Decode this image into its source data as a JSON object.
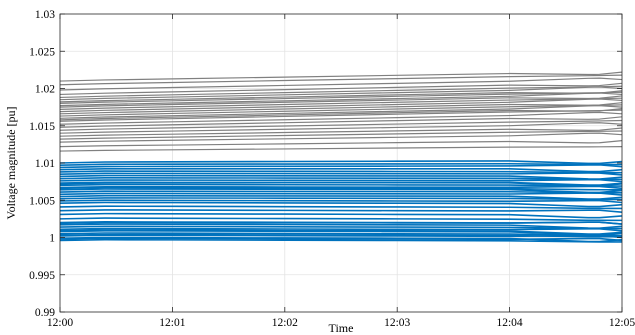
{
  "chart_data": {
    "type": "line",
    "title": "",
    "xlabel": "Time",
    "ylabel": "Voltage magnitude [pu]",
    "x_unit": "minutes",
    "x_ticks": [
      0,
      1,
      2,
      3,
      4,
      5
    ],
    "x_tick_labels": [
      "12:00",
      "12:01",
      "12:02",
      "12:03",
      "12:04",
      "12:05"
    ],
    "xlim": [
      0,
      5
    ],
    "ylim": [
      0.99,
      1.03
    ],
    "y_ticks": [
      0.99,
      0.995,
      1,
      1.005,
      1.01,
      1.015,
      1.02,
      1.025,
      1.03
    ],
    "y_tick_labels": [
      "0.99",
      "0.995",
      "1",
      "1.005",
      "1.01",
      "1.015",
      "1.02",
      "1.025",
      "1.03"
    ],
    "grid": true,
    "x": [
      0,
      0.4,
      1,
      2,
      3,
      4,
      4.7,
      4.8,
      5
    ],
    "groups": [
      {
        "color": "#808080",
        "count": 26,
        "start_values": [
          1.021,
          1.0205,
          1.0198,
          1.0192,
          1.0188,
          1.0185,
          1.0182,
          1.018,
          1.0177,
          1.0175,
          1.0172,
          1.0169,
          1.0166,
          1.0163,
          1.016,
          1.0158,
          1.0156,
          1.0152,
          1.0148,
          1.0144,
          1.014,
          1.0136,
          1.0132,
          1.0128,
          1.0122,
          1.0116
        ],
        "end_values": [
          1.0222,
          1.0218,
          1.0212,
          1.0207,
          1.0203,
          1.02,
          1.0197,
          1.0195,
          1.0192,
          1.019,
          1.0187,
          1.0184,
          1.0181,
          1.0178,
          1.0175,
          1.0173,
          1.0171,
          1.0166,
          1.0162,
          1.0157,
          1.0152,
          1.0147,
          1.0143,
          1.0138,
          1.013,
          1.0122
        ]
      },
      {
        "color": "#0072BD",
        "count": 38,
        "start_values": [
          1.01,
          1.0097,
          1.0094,
          1.0091,
          1.0088,
          1.0085,
          1.0082,
          1.0079,
          1.0076,
          1.0073,
          1.007,
          1.0067,
          1.0064,
          1.0061,
          1.0058,
          1.0055,
          1.0052,
          1.0049,
          1.0046,
          1.0041,
          1.0036,
          1.0031,
          1.0025,
          1.002,
          1.0017,
          1.0014,
          1.0011,
          1.0008,
          1.0005,
          1.0002,
          0.9999,
          0.9996,
          1.0019,
          1.0009,
          1.0003,
          0.9998,
          1.0072,
          1.0066
        ],
        "end_values": [
          1.0102,
          1.0098,
          1.0095,
          1.0091,
          1.0087,
          1.0084,
          1.0081,
          1.0078,
          1.0075,
          1.0072,
          1.0069,
          1.0066,
          1.0063,
          1.006,
          1.0057,
          1.0054,
          1.0051,
          1.0047,
          1.0044,
          1.0039,
          1.0034,
          1.0029,
          1.0023,
          1.0018,
          1.0015,
          1.0012,
          1.0009,
          1.0006,
          1.0003,
          1.0,
          0.9997,
          0.9994,
          1.0018,
          1.0007,
          1.0001,
          0.9996,
          1.0073,
          1.0064
        ]
      }
    ]
  }
}
